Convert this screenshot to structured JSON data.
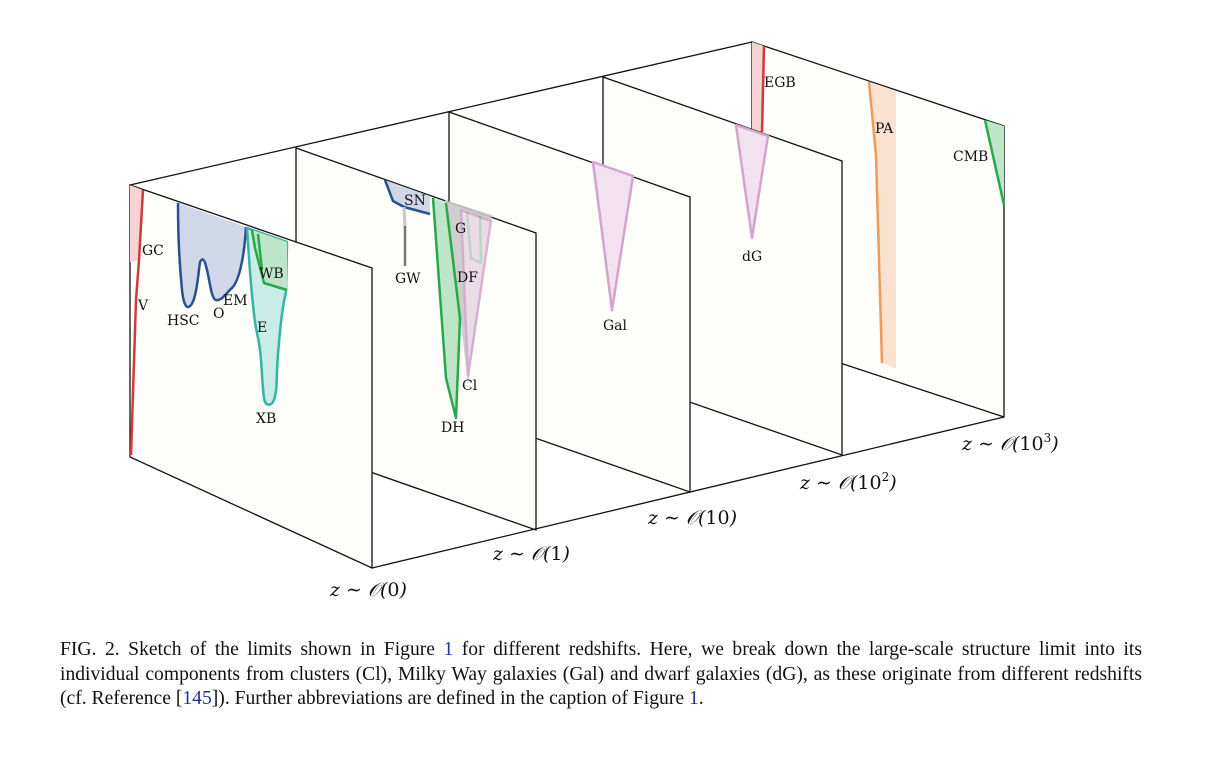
{
  "figure": {
    "regions": [
      {
        "panel": "z0",
        "labels": [
          "GC",
          "V",
          "HSC",
          "O",
          "EM",
          "WB",
          "E",
          "XB"
        ]
      },
      {
        "panel": "z1",
        "labels": [
          "SN",
          "GW",
          "G",
          "DF",
          "Cl",
          "DH"
        ]
      },
      {
        "panel": "z10",
        "labels": [
          "Gal"
        ]
      },
      {
        "panel": "z100",
        "labels": [
          "dG"
        ]
      },
      {
        "panel": "z1000",
        "labels": [
          "EGB",
          "PA",
          "CMB"
        ]
      }
    ],
    "labels": {
      "gc": "GC",
      "v": "V",
      "hsc": "HSC",
      "o": "O",
      "em": "EM",
      "wb": "WB",
      "e": "E",
      "xb": "XB",
      "sn": "SN",
      "gw": "GW",
      "g": "G",
      "df": "DF",
      "cl": "Cl",
      "dh": "DH",
      "gal": "Gal",
      "dg": "dG",
      "egb": "EGB",
      "pa": "PA",
      "cmb": "CMB"
    },
    "axis_labels": {
      "z0": {
        "prefix": "z ∼ 𝒪(",
        "value": "0",
        "exp": "",
        "suffix": ")"
      },
      "z1": {
        "prefix": "z ∼ 𝒪(",
        "value": "1",
        "exp": "",
        "suffix": ")"
      },
      "z10": {
        "prefix": "z ∼ 𝒪(",
        "value": "10",
        "exp": "",
        "suffix": ")"
      },
      "z100": {
        "prefix": "z ∼ 𝒪(",
        "value": "10",
        "exp": "2",
        "suffix": ")"
      },
      "z1000": {
        "prefix": "z ∼ 𝒪(",
        "value": "10",
        "exp": "3",
        "suffix": ")"
      }
    },
    "colors": {
      "red": "#d13a3a",
      "red_fill": "#f5d3d3",
      "blue": "#2a4f8f",
      "blue_fill": "#cfd7e8",
      "green": "#28a84a",
      "green_fill": "#bfe5c8",
      "teal": "#35b3a3",
      "teal_fill": "#c9ece6",
      "gray": "#777777",
      "gray_fill": "#c9c9c9",
      "pink": "#d3a5cc",
      "pink_fill": "#f2e1ef",
      "orange": "#ef9a5d",
      "orange_fill": "#fbe2d0",
      "panel_fill": "#fdfdfa"
    }
  },
  "caption": {
    "text_1": "FIG. 2. Sketch of the limits shown in Figure ",
    "ref_figure_1": "1",
    "text_2": " for different redshifts. Here, we break down the large-scale structure limit into its individual components from clusters (Cl), Milky Way galaxies (Gal) and dwarf galaxies (dG), as these originate from different redshifts (cf. Reference [",
    "ref_145": "145",
    "text_3": "]). Further abbreviations are defined in the caption of Figure ",
    "ref_figure_1b": "1",
    "text_4": "."
  }
}
